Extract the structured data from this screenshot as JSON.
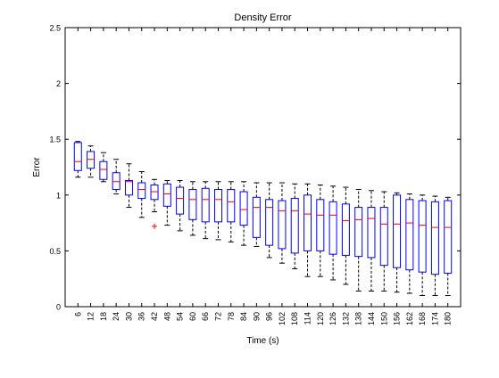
{
  "chart_data": {
    "type": "boxplot",
    "title": "Density Error",
    "xlabel": "Time (s)",
    "ylabel": "Error",
    "ylim": [
      0,
      2.5
    ],
    "yticks": [
      0,
      0.5,
      1,
      1.5,
      2,
      2.5
    ],
    "ytick_labels": [
      "0",
      "0.5",
      "1",
      "1.5",
      "2",
      "2.5"
    ],
    "grid": false,
    "legend": "none",
    "colors": {
      "box": "#0000ff",
      "median": "#ff0000",
      "whisker": "#000000",
      "outlier": "#ff0000",
      "axes": "#000000"
    },
    "categories": [
      "6",
      "12",
      "18",
      "24",
      "30",
      "36",
      "42",
      "48",
      "54",
      "60",
      "66",
      "72",
      "78",
      "84",
      "90",
      "96",
      "102",
      "108",
      "114",
      "120",
      "126",
      "132",
      "138",
      "144",
      "150",
      "156",
      "162",
      "168",
      "174",
      "180"
    ],
    "boxes": [
      {
        "q1": 1.22,
        "median": 1.3,
        "q3": 1.47,
        "whisker_low": 1.16,
        "whisker_high": 1.48
      },
      {
        "q1": 1.24,
        "median": 1.32,
        "q3": 1.39,
        "whisker_low": 1.16,
        "whisker_high": 1.44
      },
      {
        "q1": 1.14,
        "median": 1.23,
        "q3": 1.3,
        "whisker_low": 1.12,
        "whisker_high": 1.38
      },
      {
        "q1": 1.05,
        "median": 1.12,
        "q3": 1.2,
        "whisker_low": 1.01,
        "whisker_high": 1.32
      },
      {
        "q1": 1.0,
        "median": 1.12,
        "q3": 1.13,
        "whisker_low": 0.89,
        "whisker_high": 1.28
      },
      {
        "q1": 0.97,
        "median": 1.05,
        "q3": 1.11,
        "whisker_low": 0.8,
        "whisker_high": 1.21
      },
      {
        "q1": 0.96,
        "median": 1.03,
        "q3": 1.09,
        "whisker_low": 0.85,
        "whisker_high": 1.14,
        "outliers": [
          0.72
        ]
      },
      {
        "q1": 0.9,
        "median": 1.01,
        "q3": 1.1,
        "whisker_low": 0.73,
        "whisker_high": 1.13
      },
      {
        "q1": 0.83,
        "median": 0.97,
        "q3": 1.07,
        "whisker_low": 0.68,
        "whisker_high": 1.13
      },
      {
        "q1": 0.78,
        "median": 0.96,
        "q3": 1.05,
        "whisker_low": 0.64,
        "whisker_high": 1.12
      },
      {
        "q1": 0.76,
        "median": 0.96,
        "q3": 1.06,
        "whisker_low": 0.61,
        "whisker_high": 1.12
      },
      {
        "q1": 0.76,
        "median": 0.96,
        "q3": 1.05,
        "whisker_low": 0.6,
        "whisker_high": 1.12
      },
      {
        "q1": 0.76,
        "median": 0.94,
        "q3": 1.05,
        "whisker_low": 0.58,
        "whisker_high": 1.12
      },
      {
        "q1": 0.73,
        "median": 0.87,
        "q3": 1.03,
        "whisker_low": 0.55,
        "whisker_high": 1.12
      },
      {
        "q1": 0.62,
        "median": 0.89,
        "q3": 0.98,
        "whisker_low": 0.54,
        "whisker_high": 1.11
      },
      {
        "q1": 0.55,
        "median": 0.89,
        "q3": 0.96,
        "whisker_low": 0.44,
        "whisker_high": 1.11
      },
      {
        "q1": 0.52,
        "median": 0.86,
        "q3": 0.95,
        "whisker_low": 0.39,
        "whisker_high": 1.11
      },
      {
        "q1": 0.48,
        "median": 0.86,
        "q3": 0.97,
        "whisker_low": 0.34,
        "whisker_high": 1.1
      },
      {
        "q1": 0.5,
        "median": 0.83,
        "q3": 1.0,
        "whisker_low": 0.27,
        "whisker_high": 1.1
      },
      {
        "q1": 0.5,
        "median": 0.82,
        "q3": 0.96,
        "whisker_low": 0.27,
        "whisker_high": 1.09
      },
      {
        "q1": 0.47,
        "median": 0.82,
        "q3": 0.94,
        "whisker_low": 0.24,
        "whisker_high": 1.08
      },
      {
        "q1": 0.46,
        "median": 0.77,
        "q3": 0.92,
        "whisker_low": 0.2,
        "whisker_high": 1.07
      },
      {
        "q1": 0.45,
        "median": 0.78,
        "q3": 0.89,
        "whisker_low": 0.14,
        "whisker_high": 1.05
      },
      {
        "q1": 0.44,
        "median": 0.79,
        "q3": 0.89,
        "whisker_low": 0.14,
        "whisker_high": 1.04
      },
      {
        "q1": 0.37,
        "median": 0.74,
        "q3": 0.89,
        "whisker_low": 0.14,
        "whisker_high": 1.03
      },
      {
        "q1": 0.35,
        "median": 0.74,
        "q3": 1.0,
        "whisker_low": 0.13,
        "whisker_high": 1.02
      },
      {
        "q1": 0.33,
        "median": 0.75,
        "q3": 0.96,
        "whisker_low": 0.12,
        "whisker_high": 1.01
      },
      {
        "q1": 0.31,
        "median": 0.73,
        "q3": 0.95,
        "whisker_low": 0.1,
        "whisker_high": 1.0
      },
      {
        "q1": 0.29,
        "median": 0.71,
        "q3": 0.94,
        "whisker_low": 0.1,
        "whisker_high": 0.99
      },
      {
        "q1": 0.3,
        "median": 0.71,
        "q3": 0.95,
        "whisker_low": 0.1,
        "whisker_high": 0.98
      }
    ]
  }
}
